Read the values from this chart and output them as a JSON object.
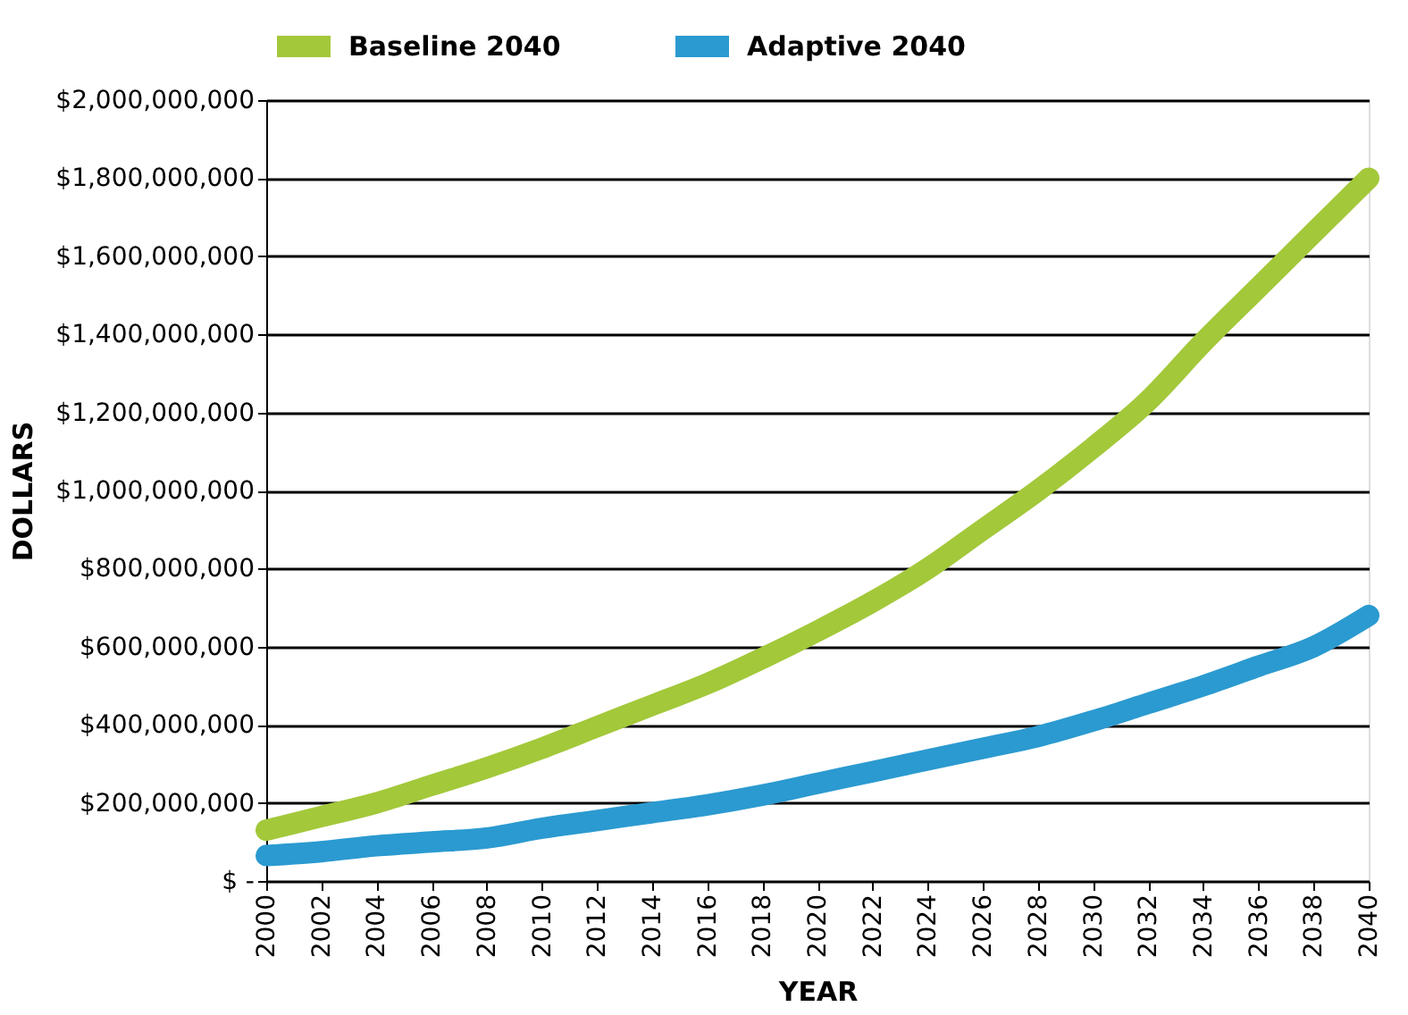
{
  "chart_data": {
    "type": "line",
    "xlabel": "YEAR",
    "ylabel": "DOLLARS",
    "x": [
      2000,
      2002,
      2004,
      2006,
      2008,
      2010,
      2012,
      2014,
      2016,
      2018,
      2020,
      2022,
      2024,
      2026,
      2028,
      2030,
      2032,
      2034,
      2036,
      2038,
      2040
    ],
    "series": [
      {
        "name": "Baseline 2040",
        "color": "#a3c83a",
        "values": [
          130000000,
          165000000,
          200000000,
          245000000,
          290000000,
          340000000,
          395000000,
          450000000,
          505000000,
          570000000,
          640000000,
          715000000,
          800000000,
          900000000,
          1000000000,
          1110000000,
          1230000000,
          1380000000,
          1520000000,
          1660000000,
          1800000000
        ]
      },
      {
        "name": "Adaptive 2040",
        "color": "#2b9ad0",
        "values": [
          65000000,
          75000000,
          90000000,
          100000000,
          110000000,
          135000000,
          155000000,
          175000000,
          195000000,
          220000000,
          250000000,
          280000000,
          310000000,
          340000000,
          370000000,
          410000000,
          455000000,
          500000000,
          550000000,
          600000000,
          680000000
        ]
      }
    ],
    "xlim": [
      2000,
      2040
    ],
    "xticks": [
      2000,
      2002,
      2004,
      2006,
      2008,
      2010,
      2012,
      2014,
      2016,
      2018,
      2020,
      2022,
      2024,
      2026,
      2028,
      2030,
      2032,
      2034,
      2036,
      2038,
      2040
    ],
    "ylim": [
      0,
      2000000000
    ],
    "yticks": [
      {
        "value": 0,
        "label": "$ -"
      },
      {
        "value": 200000000,
        "label": "$200,000,000"
      },
      {
        "value": 400000000,
        "label": "$400,000,000"
      },
      {
        "value": 600000000,
        "label": "$600,000,000"
      },
      {
        "value": 800000000,
        "label": "$800,000,000"
      },
      {
        "value": 1000000000,
        "label": "$1,000,000,000"
      },
      {
        "value": 1200000000,
        "label": "$1,200,000,000"
      },
      {
        "value": 1400000000,
        "label": "$1,400,000,000"
      },
      {
        "value": 1600000000,
        "label": "$1,600,000,000"
      },
      {
        "value": 1800000000,
        "label": "$1,800,000,000"
      },
      {
        "value": 2000000000,
        "label": "$2,000,000,000"
      }
    ],
    "grid": "y",
    "legend": "top left",
    "line_style": "solid"
  }
}
